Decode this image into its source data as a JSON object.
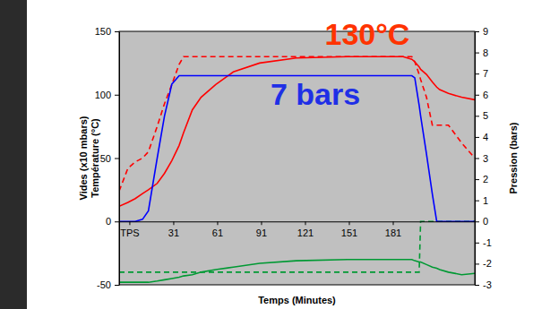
{
  "chart_data": {
    "type": "line",
    "xlabel": "Temps (Minutes)",
    "ylabel": [
      "Vides (x10 mbars)",
      "Température (°C)"
    ],
    "y2label": "Pression (bars)",
    "annotations": [
      {
        "text": "130°C",
        "color": "#ff3300"
      },
      {
        "text": "7 bars",
        "color": "#1f2fe6"
      }
    ],
    "x": [
      -6,
      0,
      5,
      10,
      14,
      20,
      25,
      30,
      35,
      38,
      44,
      50,
      60,
      72,
      90,
      115,
      150,
      188,
      194,
      196,
      199,
      200,
      204,
      208,
      211,
      213,
      219,
      228,
      237
    ],
    "xlim": [
      -6,
      237
    ],
    "xticks": [
      {
        "value": 1,
        "label": "TPS"
      },
      31,
      61,
      91,
      121,
      151,
      181
    ],
    "ylim": [
      -50,
      150
    ],
    "yticks": [
      -50,
      0,
      50,
      100,
      150
    ],
    "y2lim": [
      -3,
      9
    ],
    "y2ticks": [
      -3,
      -2,
      -1,
      0,
      1,
      2,
      3,
      4,
      5,
      6,
      7,
      8,
      9
    ],
    "grid": false,
    "series": [
      {
        "color": "#009933",
        "line_style": "solid",
        "axis": "y",
        "values": [
          -48,
          -48,
          -48,
          -48,
          -48,
          -47,
          -46,
          -45,
          -44,
          -43,
          -42,
          -40,
          -38,
          -36,
          -33,
          -31,
          -30,
          -30,
          -30,
          -31,
          -32,
          -32,
          -34,
          -36,
          -37,
          -38,
          -40,
          -42,
          -41
        ]
      },
      {
        "color": "#009933",
        "line_style": "dashed",
        "axis": "y",
        "values": [
          -40,
          -40,
          -40,
          -40,
          -40,
          -40,
          -40,
          -40,
          -40,
          -40,
          -40,
          -40,
          -40,
          -40,
          -40,
          -40,
          -40,
          -40,
          -40,
          -40,
          -40,
          0,
          0,
          0,
          0,
          0,
          0,
          0,
          0
        ]
      },
      {
        "color": "#ff0000",
        "line_style": "dashed",
        "axis": "y",
        "values": [
          24,
          42,
          47,
          50,
          55,
          75,
          93,
          108,
          124,
          130,
          130,
          130,
          130,
          130,
          130,
          130,
          130,
          130,
          130,
          126,
          116,
          112,
          98,
          76,
          76,
          76,
          76,
          62,
          50
        ]
      },
      {
        "color": "#ff0000",
        "line_style": "solid",
        "axis": "y",
        "values": [
          12,
          15,
          18,
          22,
          25,
          30,
          38,
          48,
          60,
          70,
          88,
          98,
          108,
          118,
          125,
          129,
          130,
          130,
          128,
          126,
          122,
          120,
          116,
          110,
          106,
          104,
          101,
          98,
          96
        ]
      },
      {
        "color": "#0000ff",
        "line_style": "solid",
        "axis": "y2",
        "values": [
          0,
          0,
          0,
          0.1,
          0.5,
          3,
          5,
          6.5,
          6.9,
          6.9,
          6.9,
          6.9,
          6.9,
          6.9,
          6.9,
          6.9,
          6.9,
          6.9,
          6.9,
          6.8,
          5.5,
          5,
          3.2,
          1.3,
          0,
          0,
          0,
          0,
          0
        ]
      }
    ]
  }
}
